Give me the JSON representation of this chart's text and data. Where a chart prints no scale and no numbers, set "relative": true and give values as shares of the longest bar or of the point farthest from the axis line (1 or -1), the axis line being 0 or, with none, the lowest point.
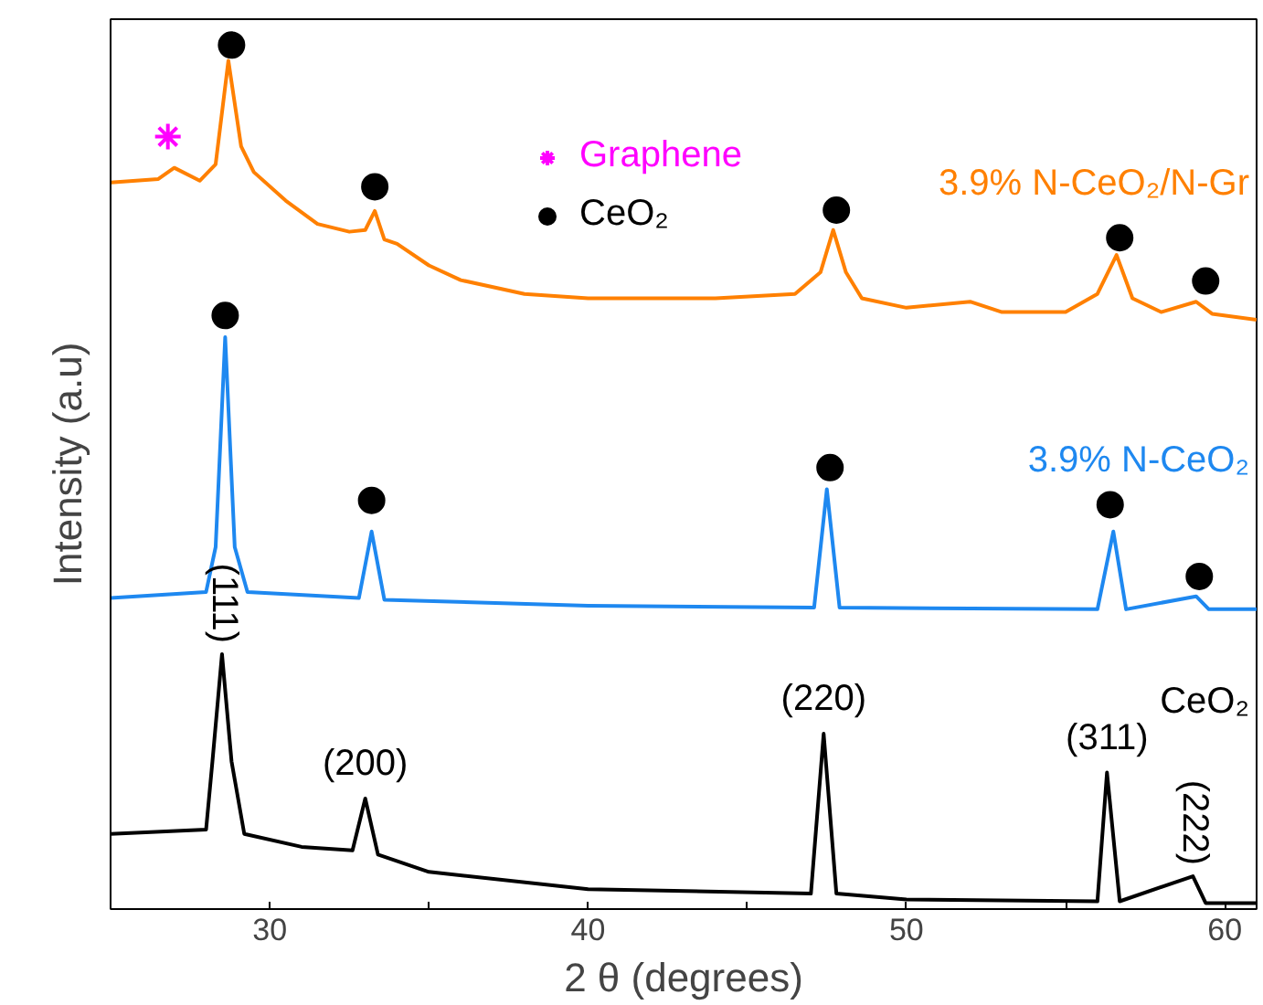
{
  "chart_data": {
    "type": "line",
    "relative": true,
    "xlabel": "2 θ (degrees)",
    "ylabel": "Intensity (a.u)",
    "xlim": [
      25,
      61
    ],
    "xticks": [
      {
        "value": 25,
        "label": null
      },
      30,
      {
        "value": 35,
        "label": null
      },
      40,
      {
        "value": 45,
        "label": null
      },
      50,
      {
        "value": 55,
        "label": null
      },
      60
    ],
    "grid": false,
    "legend": "top",
    "line_style": "solid",
    "marker": "none",
    "series": [
      {
        "name": "3.9% N-CeO₂/N-Gr",
        "color": "#ff8000",
        "x": [
          25,
          26.5,
          27,
          27.8,
          28.3,
          28.7,
          29.1,
          29.5,
          30.5,
          31.5,
          32.5,
          33.0,
          33.3,
          33.6,
          34,
          35,
          36,
          38,
          40,
          44,
          46.5,
          47.3,
          47.7,
          48.1,
          48.6,
          50,
          52,
          53,
          55,
          56,
          56.6,
          57.1,
          58,
          59.1,
          59.6,
          61
        ],
        "values": [
          0.841,
          0.845,
          0.858,
          0.843,
          0.862,
          0.982,
          0.883,
          0.853,
          0.82,
          0.793,
          0.784,
          0.786,
          0.808,
          0.775,
          0.77,
          0.745,
          0.728,
          0.712,
          0.707,
          0.707,
          0.712,
          0.737,
          0.786,
          0.737,
          0.707,
          0.696,
          0.703,
          0.691,
          0.691,
          0.712,
          0.757,
          0.707,
          0.691,
          0.703,
          0.689,
          0.682
        ]
      },
      {
        "name": "3.9% N-CeO₂",
        "color": "#1e88f0",
        "x": [
          25,
          28,
          28.3,
          28.6,
          28.9,
          29.3,
          32.8,
          33.2,
          33.6,
          40,
          47.1,
          47.5,
          47.9,
          56,
          56.5,
          56.9,
          59.1,
          59.5,
          61
        ],
        "values": [
          0.36,
          0.367,
          0.419,
          0.662,
          0.419,
          0.367,
          0.36,
          0.437,
          0.358,
          0.351,
          0.349,
          0.486,
          0.349,
          0.347,
          0.437,
          0.347,
          0.362,
          0.347,
          0.347
        ]
      },
      {
        "name": "CeO₂",
        "color": "#000000",
        "x": [
          25,
          28,
          28.2,
          28.5,
          28.8,
          29.2,
          31,
          32.6,
          33.0,
          33.4,
          35,
          40,
          47,
          47.4,
          47.8,
          50,
          56,
          56.3,
          56.7,
          59.0,
          59.4,
          61
        ],
        "values": [
          0.087,
          0.092,
          0.171,
          0.295,
          0.171,
          0.087,
          0.072,
          0.068,
          0.128,
          0.063,
          0.043,
          0.023,
          0.018,
          0.203,
          0.018,
          0.011,
          0.009,
          0.158,
          0.009,
          0.038,
          0.007,
          0.007
        ]
      },
      {
        "type": "scatter",
        "name": "Graphene",
        "color": "#ff00ff",
        "marker": "cross",
        "x": [
          26.8
        ],
        "values": [
          0.894
        ]
      },
      {
        "type": "scatter",
        "name": "CeO₂",
        "color": "#000000",
        "marker": "circle",
        "x": [
          28.8,
          33.3,
          47.8,
          56.7,
          59.4,
          28.6,
          33.2,
          47.6,
          56.4,
          59.2
        ],
        "values": [
          1.0,
          0.836,
          0.809,
          0.777,
          0.727,
          0.687,
          0.473,
          0.511,
          0.468,
          0.385
        ]
      }
    ],
    "annotations": [
      {
        "text": "(111)",
        "x": 28.5,
        "y": 0.295
      },
      {
        "text": "(200)",
        "x": 33.0,
        "y": 0.128
      },
      {
        "text": "(220)",
        "x": 47.4,
        "y": 0.203
      },
      {
        "text": "(311)",
        "x": 56.3,
        "y": 0.158
      },
      {
        "text": "(222)",
        "x": 59.0,
        "y": 0.038
      }
    ]
  }
}
